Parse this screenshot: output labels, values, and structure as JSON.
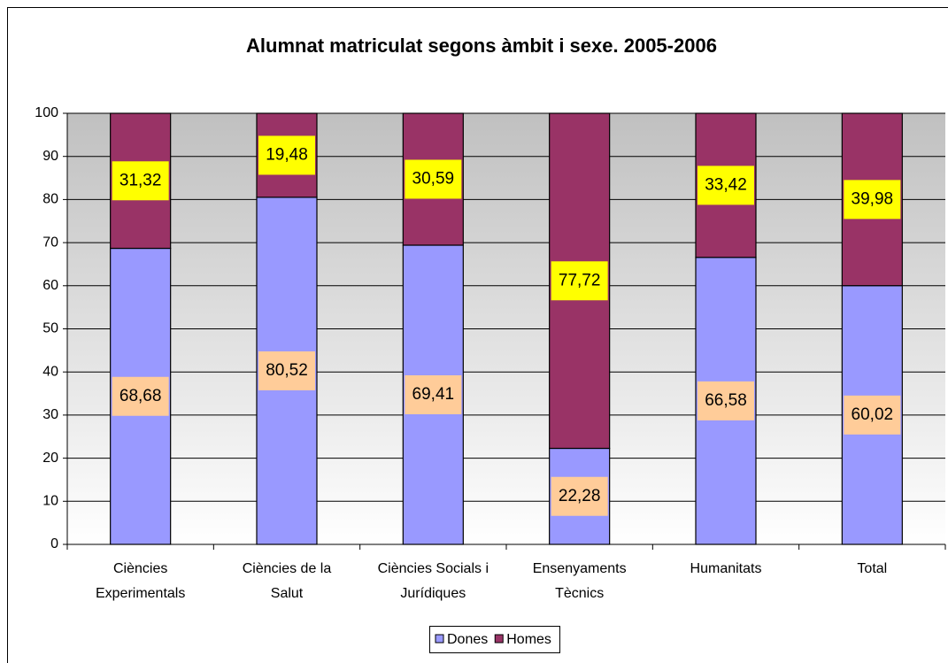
{
  "chart_data": {
    "type": "stacked_bar",
    "title": "Alumnat matriculat segons àmbit i sexe. 2005-2006",
    "categories": [
      "Ciències Experimentals",
      "Ciències de la Salut",
      "Ciències Socials i Jurídiques",
      "Ensenyaments Tècnics",
      "Humanitats",
      "Total"
    ],
    "series": [
      {
        "name": "Dones",
        "color": "#9999ff",
        "label_color": "#ffcc99",
        "values": [
          68.68,
          80.52,
          69.41,
          22.28,
          66.58,
          60.02
        ],
        "value_labels": [
          "68,68",
          "80,52",
          "69,41",
          "22,28",
          "66,58",
          "60,02"
        ]
      },
      {
        "name": "Homes",
        "color": "#993366",
        "label_color": "#ffff00",
        "values": [
          31.32,
          19.48,
          30.59,
          77.72,
          33.42,
          39.98
        ],
        "value_labels": [
          "31,32",
          "19,48",
          "30,59",
          "77,72",
          "33,42",
          "39,98"
        ]
      }
    ],
    "ylim": [
      0,
      100
    ],
    "yticks": [
      0,
      10,
      20,
      30,
      40,
      50,
      60,
      70,
      80,
      90,
      100
    ],
    "grid": true,
    "legend": "bottom"
  }
}
